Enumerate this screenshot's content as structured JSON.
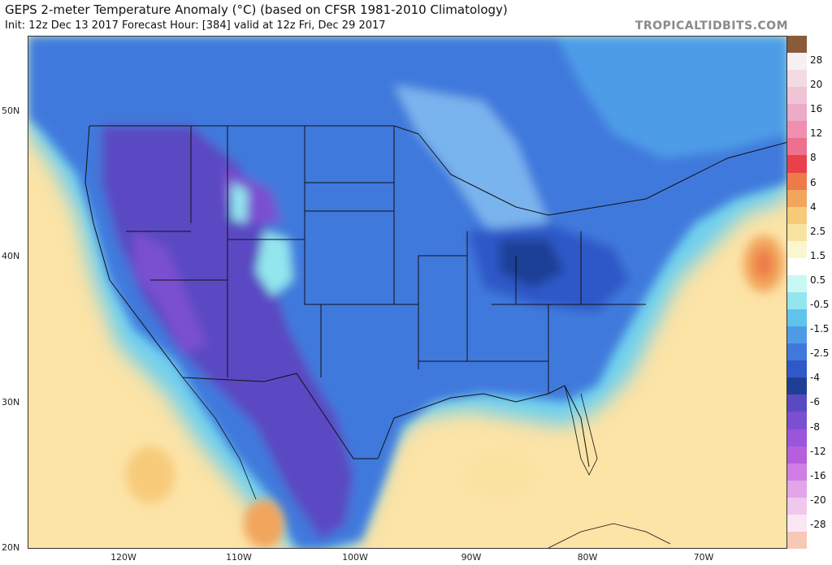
{
  "header": {
    "title": "GEPS 2-meter Temperature Anomaly (°C) (based on CFSR 1981-2010 Climatology)",
    "subtitle": "Init: 12z Dec 13 2017   Forecast Hour: [384]   valid at 12z Fri, Dec 29 2017",
    "brand": "TROPICALTIDBITS.COM"
  },
  "map": {
    "lat_labels": [
      "50N",
      "40N",
      "30N",
      "20N"
    ],
    "lon_labels": [
      "120W",
      "110W",
      "100W",
      "90W",
      "80W",
      "70W"
    ]
  },
  "colorbar": {
    "labels": [
      "28",
      "20",
      "16",
      "12",
      "8",
      "6",
      "4",
      "2.5",
      "1.5",
      "0.5",
      "-0.5",
      "-1.5",
      "-2.5",
      "-4",
      "-6",
      "-8",
      "-12",
      "-16",
      "-20",
      "-28"
    ],
    "colors": [
      "#8a5a3a",
      "#f7f0f2",
      "#f3dbe3",
      "#f0c4d6",
      "#ecabc6",
      "#f08fb0",
      "#ee6f8e",
      "#e8414a",
      "#ee7a4a",
      "#f2a55c",
      "#f7cb7a",
      "#f9e3a0",
      "#fcf6cf",
      "#ffffff",
      "#c9f7f4",
      "#93e6ee",
      "#5fc4ec",
      "#4e9ce8",
      "#3f79dc",
      "#2f58c8",
      "#1f3f96",
      "#5a4ac2",
      "#7a4fd0",
      "#9b54dc",
      "#b65fdc",
      "#d07ee6",
      "#e3a5ea",
      "#f0c8ee",
      "#fbe6f4",
      "#f6c9b6"
    ]
  }
}
